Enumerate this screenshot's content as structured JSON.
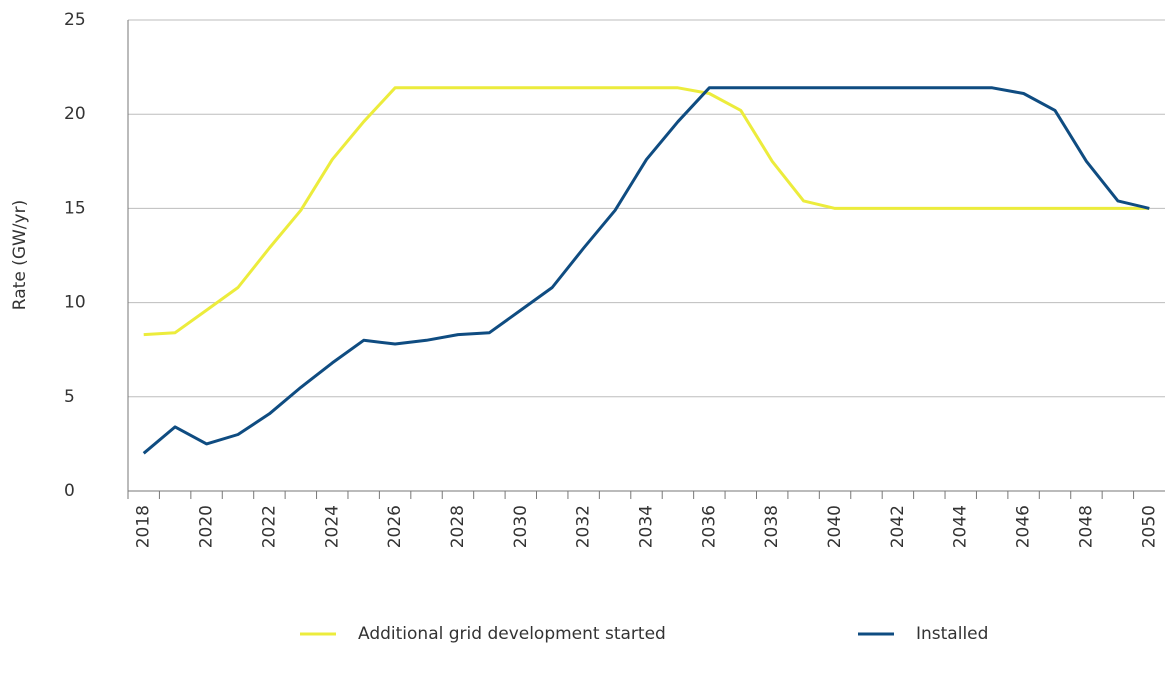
{
  "chart_data": {
    "type": "line",
    "ylabel": "Rate (GW/yr)",
    "categories": [
      "2018",
      null,
      "2020",
      null,
      "2022",
      null,
      "2024",
      null,
      "2026",
      null,
      "2028",
      null,
      "2030",
      null,
      "2032",
      null,
      "2034",
      null,
      "2036",
      null,
      "2038",
      null,
      "2040",
      null,
      "2042",
      null,
      "2044",
      null,
      "2046",
      null,
      "2048",
      null,
      "2050"
    ],
    "series": [
      {
        "name": "Additional grid development started",
        "color": "#ecec3c",
        "values": [
          8.3,
          8.4,
          9.6,
          10.8,
          12.9,
          14.9,
          17.6,
          19.6,
          21.4,
          21.4,
          21.4,
          21.4,
          21.4,
          21.4,
          21.4,
          21.4,
          21.4,
          21.4,
          21.1,
          20.2,
          17.5,
          15.4,
          15.0,
          15.0,
          15.0,
          15.0,
          15.0,
          15.0,
          15.0,
          15.0,
          15.0,
          15.0,
          15.0
        ]
      },
      {
        "name": "Installed",
        "color": "#0f4c81",
        "values": [
          2.0,
          3.4,
          2.5,
          3.0,
          4.1,
          5.5,
          6.8,
          8.0,
          7.8,
          8.0,
          8.3,
          8.4,
          9.6,
          10.8,
          12.9,
          14.9,
          17.6,
          19.6,
          21.4,
          21.4,
          21.4,
          21.4,
          21.4,
          21.4,
          21.4,
          21.4,
          21.4,
          21.4,
          21.1,
          20.2,
          17.5,
          15.4,
          15.0
        ]
      }
    ],
    "ylim": [
      0,
      25
    ],
    "yticks": [
      0,
      5,
      10,
      15,
      20,
      25
    ],
    "grid": true
  }
}
